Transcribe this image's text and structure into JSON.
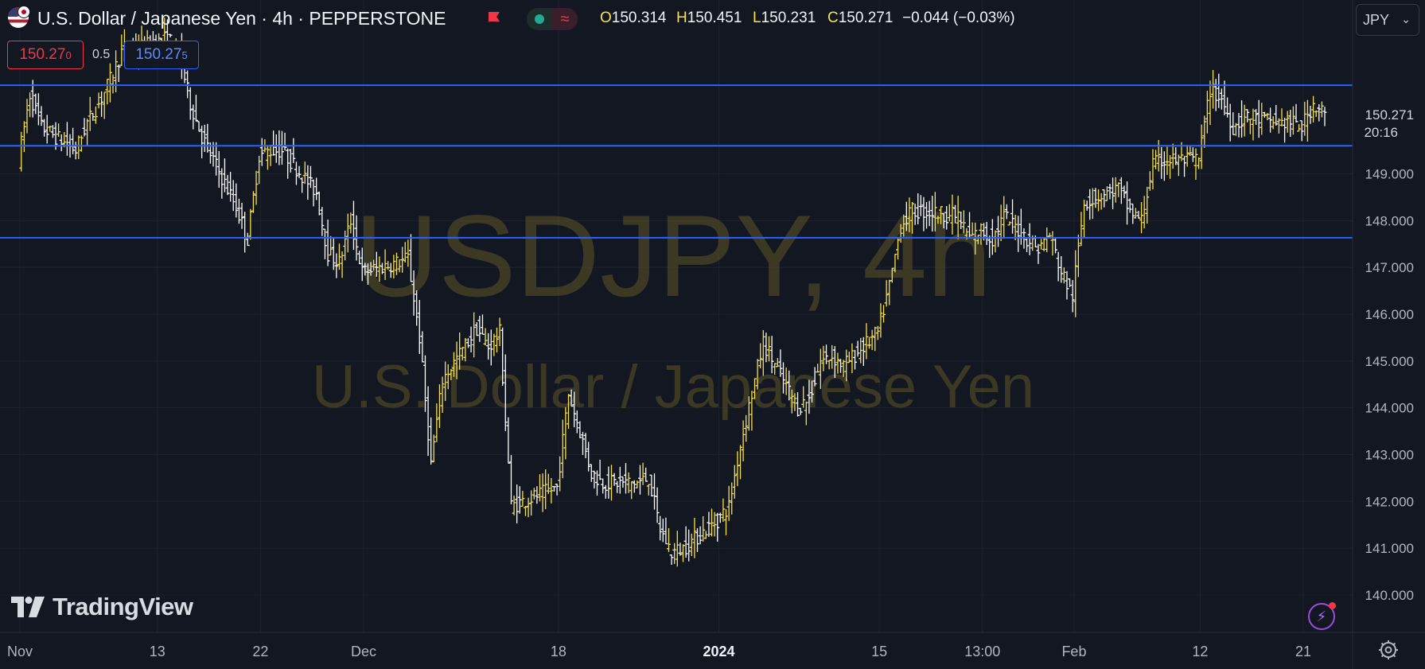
{
  "header": {
    "title": "U.S. Dollar / Japanese Yen · 4h · PEPPERSTONE",
    "flag_icon": "flag-icon",
    "status_icons": [
      "market-open-dot-icon",
      "wave-icon"
    ],
    "ohlc": {
      "open_key": "O",
      "open": "150.314",
      "high_key": "H",
      "high": "150.451",
      "low_key": "L",
      "low": "150.231",
      "close_key": "C",
      "close": "150.271",
      "change": "−0.044 (−0.03%)"
    },
    "currency": "JPY"
  },
  "trade": {
    "sell_main": "150.27",
    "sell_sup": "0",
    "spread": "0.5",
    "buy_main": "150.27",
    "buy_sup": "5"
  },
  "watermark": {
    "symbol": "USDJPY, 4h",
    "name": "U.S. Dollar / Japanese Yen"
  },
  "brand": {
    "logo_text": "TradingView",
    "logo_icon": "tradingview-logo-icon"
  },
  "footer_icons": [
    "lightning-icon",
    "gear-icon"
  ],
  "colors": {
    "background": "#131722",
    "grid": "#1e222d",
    "bar_up": "#f7e14a",
    "bar_down": "#ffffff",
    "hline": "#2962ff",
    "sell": "#f23645",
    "buy": "#2962ff"
  },
  "chart_data": {
    "type": "ohlc",
    "symbol": "USDJPY",
    "interval": "4h",
    "exchange": "PEPPERSTONE",
    "ylim": [
      139.2,
      151.9
    ],
    "y_ticks": [
      "140.000",
      "141.000",
      "142.000",
      "143.000",
      "144.000",
      "145.000",
      "146.000",
      "147.000",
      "148.000",
      "149.000"
    ],
    "y_tick_values": [
      140,
      141,
      142,
      143,
      144,
      145,
      146,
      147,
      148,
      149
    ],
    "x_ticks": [
      {
        "label": "Nov",
        "date": "2023-11-01",
        "bold": false
      },
      {
        "label": "13",
        "date": "2023-11-13",
        "bold": false
      },
      {
        "label": "22",
        "date": "2023-11-22",
        "bold": false
      },
      {
        "label": "Dec",
        "date": "2023-12-01",
        "bold": false
      },
      {
        "label": "18",
        "date": "2023-12-18",
        "bold": false
      },
      {
        "label": "2024",
        "date": "2024-01-01",
        "bold": true
      },
      {
        "label": "15",
        "date": "2024-01-15",
        "bold": false
      },
      {
        "label": "13:00",
        "date": "2024-01-24",
        "bold": false
      },
      {
        "label": "Feb",
        "date": "2024-02-01",
        "bold": false
      },
      {
        "label": "12",
        "date": "2024-02-12",
        "bold": false
      },
      {
        "label": "21",
        "date": "2024-02-21",
        "bold": false
      }
    ],
    "horizontal_lines": [
      {
        "value": 150.894,
        "label": "150.894"
      },
      {
        "value": 149.6,
        "label": "149.600"
      },
      {
        "value": 147.635,
        "label": "147.635"
      }
    ],
    "last_price": {
      "value": 150.271,
      "label": "150.271",
      "countdown": "20:16"
    },
    "path": [
      [
        "2023-11-01",
        149.3
      ],
      [
        "2023-11-02",
        150.7
      ],
      [
        "2023-11-03",
        150.0
      ],
      [
        "2023-11-06",
        149.5
      ],
      [
        "2023-11-07",
        150.1
      ],
      [
        "2023-11-08",
        150.5
      ],
      [
        "2023-11-09",
        151.0
      ],
      [
        "2023-11-10",
        151.6
      ],
      [
        "2023-11-13",
        151.8
      ],
      [
        "2023-11-14",
        151.9
      ],
      [
        "2023-11-15",
        151.6
      ],
      [
        "2023-11-16",
        150.5
      ],
      [
        "2023-11-17",
        149.8
      ],
      [
        "2023-11-20",
        148.3
      ],
      [
        "2023-11-21",
        147.6
      ],
      [
        "2023-11-22",
        149.4
      ],
      [
        "2023-11-23",
        149.5
      ],
      [
        "2023-11-24",
        149.5
      ],
      [
        "2023-11-27",
        148.6
      ],
      [
        "2023-11-28",
        147.3
      ],
      [
        "2023-11-29",
        147.1
      ],
      [
        "2023-11-30",
        148.0
      ],
      [
        "2023-12-01",
        146.9
      ],
      [
        "2023-12-04",
        147.1
      ],
      [
        "2023-12-05",
        147.2
      ],
      [
        "2023-12-06",
        145.5
      ],
      [
        "2023-12-07",
        142.8
      ],
      [
        "2023-12-08",
        144.6
      ],
      [
        "2023-12-11",
        145.7
      ],
      [
        "2023-12-12",
        145.3
      ],
      [
        "2023-12-13",
        145.6
      ],
      [
        "2023-12-14",
        141.9
      ],
      [
        "2023-12-15",
        142.0
      ],
      [
        "2023-12-18",
        142.3
      ],
      [
        "2023-12-19",
        144.3
      ],
      [
        "2023-12-20",
        143.5
      ],
      [
        "2023-12-21",
        142.6
      ],
      [
        "2023-12-22",
        142.4
      ],
      [
        "2023-12-25",
        142.4
      ],
      [
        "2023-12-26",
        142.5
      ],
      [
        "2023-12-27",
        141.4
      ],
      [
        "2023-12-28",
        140.9
      ],
      [
        "2023-12-29",
        141.0
      ],
      [
        "2024-01-01",
        141.6
      ],
      [
        "2024-01-02",
        141.9
      ],
      [
        "2024-01-03",
        143.2
      ],
      [
        "2024-01-04",
        144.3
      ],
      [
        "2024-01-05",
        145.4
      ],
      [
        "2024-01-08",
        144.0
      ],
      [
        "2024-01-09",
        144.2
      ],
      [
        "2024-01-10",
        145.0
      ],
      [
        "2024-01-11",
        145.1
      ],
      [
        "2024-01-12",
        144.9
      ],
      [
        "2024-01-15",
        145.6
      ],
      [
        "2024-01-16",
        146.6
      ],
      [
        "2024-01-17",
        147.9
      ],
      [
        "2024-01-18",
        148.2
      ],
      [
        "2024-01-19",
        148.2
      ],
      [
        "2024-01-22",
        148.1
      ],
      [
        "2024-01-23",
        147.6
      ],
      [
        "2024-01-24",
        147.8
      ],
      [
        "2024-01-25",
        147.6
      ],
      [
        "2024-01-26",
        148.1
      ],
      [
        "2024-01-29",
        147.4
      ],
      [
        "2024-01-30",
        147.7
      ],
      [
        "2024-01-31",
        146.9
      ],
      [
        "2024-02-01",
        146.4
      ],
      [
        "2024-02-02",
        148.4
      ],
      [
        "2024-02-05",
        148.7
      ],
      [
        "2024-02-06",
        148.2
      ],
      [
        "2024-02-07",
        148.0
      ],
      [
        "2024-02-08",
        149.2
      ],
      [
        "2024-02-09",
        149.3
      ],
      [
        "2024-02-12",
        149.3
      ],
      [
        "2024-02-13",
        150.8
      ],
      [
        "2024-02-14",
        150.6
      ],
      [
        "2024-02-15",
        150.0
      ],
      [
        "2024-02-16",
        150.2
      ],
      [
        "2024-02-19",
        150.1
      ],
      [
        "2024-02-20",
        150.1
      ],
      [
        "2024-02-21",
        150.0
      ],
      [
        "2024-02-22",
        150.5
      ],
      [
        "2024-02-23",
        150.3
      ]
    ]
  }
}
